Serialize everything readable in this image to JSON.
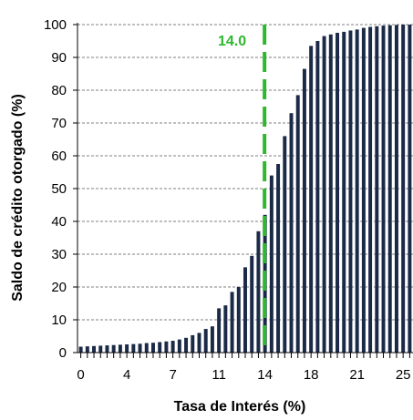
{
  "chart_data": {
    "type": "bar",
    "xlabel": "Tasa de Interés (%)",
    "ylabel": "Saldo de crédito otorgado (%)",
    "ylim": [
      0,
      100
    ],
    "yticks": [
      0,
      10,
      20,
      30,
      40,
      50,
      60,
      70,
      80,
      90,
      100
    ],
    "xlim": [
      -0.25,
      25.25
    ],
    "xtick_labels": [
      {
        "x": 0,
        "label": "0"
      },
      {
        "x": 3.5,
        "label": "4"
      },
      {
        "x": 7,
        "label": "7"
      },
      {
        "x": 10.5,
        "label": "11"
      },
      {
        "x": 14,
        "label": "14"
      },
      {
        "x": 17.5,
        "label": "18"
      },
      {
        "x": 21,
        "label": "21"
      },
      {
        "x": 24.5,
        "label": "25"
      }
    ],
    "x": [
      0,
      0.5,
      1,
      1.5,
      2,
      2.5,
      3,
      3.5,
      4,
      4.5,
      5,
      5.5,
      6,
      6.5,
      7,
      7.5,
      8,
      8.5,
      9,
      9.5,
      10,
      10.5,
      11,
      11.5,
      12,
      12.5,
      13,
      13.5,
      14,
      14.5,
      15,
      15.5,
      16,
      16.5,
      17,
      17.5,
      18,
      18.5,
      19,
      19.5,
      20,
      20.5,
      21,
      21.5,
      22,
      22.5,
      23,
      23.5,
      24,
      24.5,
      25
    ],
    "values": [
      1.8,
      1.9,
      2.0,
      2.1,
      2.2,
      2.3,
      2.4,
      2.5,
      2.6,
      2.7,
      2.9,
      3.0,
      3.2,
      3.4,
      3.6,
      4.0,
      4.5,
      5.3,
      6.0,
      7.2,
      8.0,
      13.5,
      14.4,
      18.5,
      20.0,
      26.0,
      29.5,
      37.0,
      42.0,
      54.0,
      57.5,
      66.0,
      73.0,
      78.5,
      86.5,
      93.5,
      95.0,
      96.5,
      97.0,
      97.5,
      97.8,
      98.2,
      98.5,
      99.0,
      99.3,
      99.5,
      99.7,
      99.8,
      99.9,
      100.0,
      100.0
    ],
    "bar_color": "#1b2a47",
    "grid": true,
    "grid_style": "dashed",
    "annotation": {
      "label": "14.0",
      "x": 14,
      "color": "#2eb82e",
      "line_style": "dashed"
    }
  }
}
